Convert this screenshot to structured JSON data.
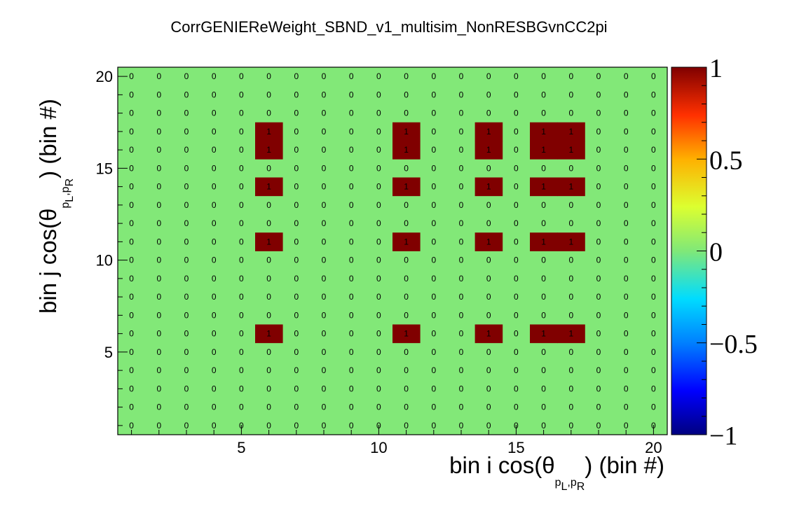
{
  "chart_data": {
    "type": "heatmap",
    "title": "CorrGENIEReWeight_SBND_v1_multisim_NonRESBGvnCC2pi",
    "xlabel": {
      "prefix": "bin i cos(θ",
      "sub_a": "p",
      "sub_a_sub": "L",
      "sep": ",",
      "sub_b": "p",
      "sub_b_sub": "R",
      "suffix": ") (bin #)"
    },
    "ylabel": {
      "prefix": "bin j cos(θ",
      "sub_a": "p",
      "sub_a_sub": "L",
      "sep": ",",
      "sub_b": "p",
      "sub_b_sub": "R",
      "suffix": ") (bin #)"
    },
    "xlim": [
      0.5,
      20.5
    ],
    "ylim": [
      0.5,
      20.5
    ],
    "xticks": [
      5,
      10,
      15,
      20
    ],
    "xtick_labels": [
      "5",
      "10",
      "15",
      "20"
    ],
    "yticks": [
      5,
      10,
      15,
      20
    ],
    "ytick_labels": [
      "5",
      "10",
      "15",
      "20"
    ],
    "zlim": [
      -1,
      1
    ],
    "colorbar_ticks": [
      1,
      0.5,
      0,
      -0.5,
      -1
    ],
    "colorbar_labels": [
      "1",
      "0.5",
      "0",
      "−0.5",
      "−1"
    ],
    "nx": 20,
    "ny": 20,
    "one_columns": [
      6,
      11,
      14,
      16,
      17
    ],
    "one_rows": [
      6,
      11,
      14,
      16,
      17
    ],
    "cell_value_labels": {
      "zero": "0",
      "one": "1"
    },
    "colors": {
      "zero": "#82e878",
      "one": "#800000"
    }
  }
}
